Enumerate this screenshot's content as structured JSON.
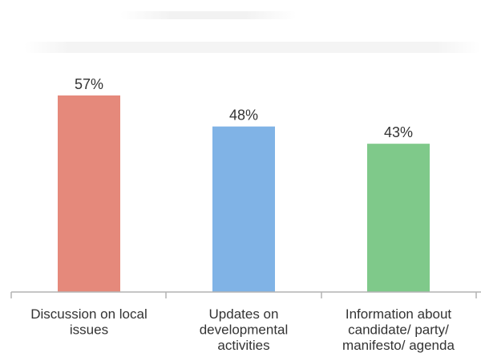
{
  "chart_data": {
    "type": "bar",
    "categories": [
      [
        "Discussion on local",
        "issues"
      ],
      [
        "Updates on",
        "developmental",
        "activities"
      ],
      [
        "Information about",
        "candidate/ party/",
        "manifesto/ agenda"
      ]
    ],
    "values": [
      57,
      48,
      43
    ],
    "data_labels": [
      "57%",
      "48%",
      "43%"
    ],
    "colors": [
      "#E5897B",
      "#80B3E6",
      "#7FC98A"
    ],
    "ylim": [
      0,
      57
    ],
    "grid": false,
    "legend": "none"
  }
}
